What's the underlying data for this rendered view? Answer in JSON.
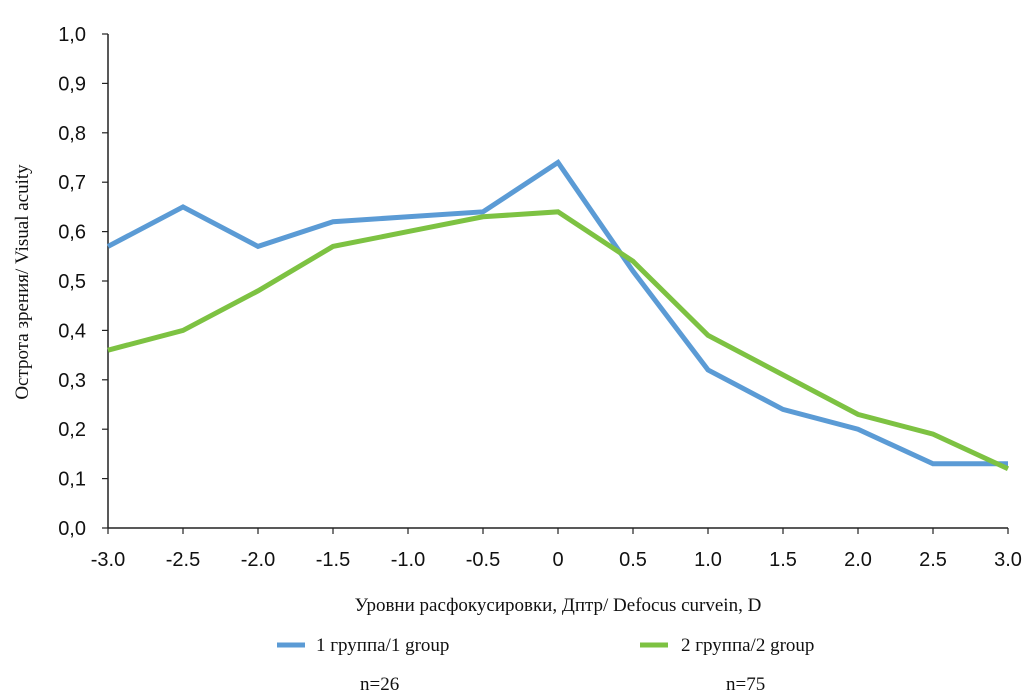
{
  "chart_data": {
    "type": "line",
    "xlabel": "Уровни расфокусировки, Дптр/ Defocus curvein, D",
    "ylabel": "Острота зрения/ Visual acuity",
    "categories": [
      "-3.0",
      "-2.5",
      "-2.0",
      "-1.5",
      "-1.0",
      "-0.5",
      "0",
      "0.5",
      "1.0",
      "1.5",
      "2.0",
      "2.5",
      "3.0"
    ],
    "x": [
      -3.0,
      -2.5,
      -2.0,
      -1.5,
      -1.0,
      -0.5,
      0,
      0.5,
      1.0,
      1.5,
      2.0,
      2.5,
      3.0
    ],
    "yticks": [
      "0,0",
      "0,1",
      "0,2",
      "0,3",
      "0,4",
      "0,5",
      "0,6",
      "0,7",
      "0,8",
      "0,9",
      "1,0"
    ],
    "ylim": [
      0,
      1.0
    ],
    "xlim": [
      -3.0,
      3.0
    ],
    "grid": false,
    "series": [
      {
        "name": "1 группа/1 group",
        "n": "n=26",
        "color": "#5b9bd5",
        "values": [
          0.57,
          0.65,
          0.57,
          0.62,
          0.63,
          0.64,
          0.74,
          0.52,
          0.32,
          0.24,
          0.2,
          0.13,
          0.13
        ]
      },
      {
        "name": "2 группа/2 group",
        "n": "n=75",
        "color": "#7dc242",
        "values": [
          0.36,
          0.4,
          0.48,
          0.57,
          0.6,
          0.63,
          0.64,
          0.54,
          0.39,
          0.31,
          0.23,
          0.19,
          0.12
        ]
      }
    ]
  }
}
